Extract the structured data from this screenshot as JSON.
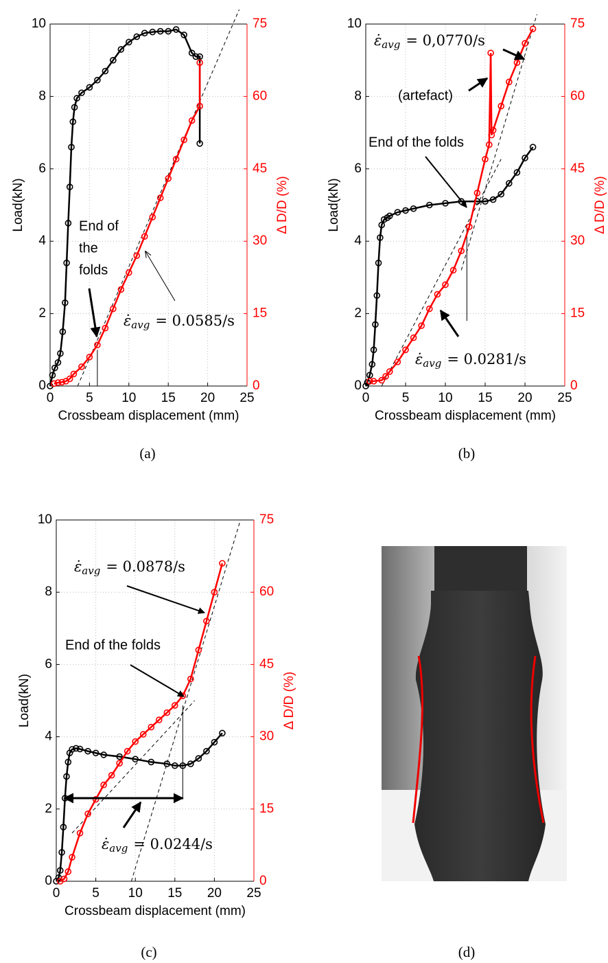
{
  "chart_data": [
    {
      "type": "line",
      "caption": "(a)",
      "x_label": "Crossbeam displacement (mm)",
      "y_label": "Load(kN)",
      "y2_label": "Δ D/D (%)",
      "xlim": [
        0,
        25
      ],
      "xticks": [
        0,
        5,
        10,
        15,
        20,
        25
      ],
      "ylim": [
        0,
        10
      ],
      "yticks": [
        0,
        2,
        4,
        6,
        8,
        10
      ],
      "y2lim": [
        0,
        75
      ],
      "y2ticks": [
        0,
        15,
        30,
        45,
        60,
        75
      ],
      "grid": true,
      "series": [
        {
          "color": "#000000",
          "x": [
            0,
            0.3,
            0.6,
            1,
            1.3,
            1.6,
            1.9,
            2.1,
            2.3,
            2.5,
            2.7,
            2.9,
            3.1,
            3.4,
            4,
            5,
            6,
            7,
            8,
            9,
            10,
            11,
            12,
            13,
            14,
            15,
            16,
            17,
            18,
            18.5,
            19,
            19
          ],
          "values": [
            0,
            0.3,
            0.5,
            0.65,
            0.9,
            1.5,
            2.3,
            3.4,
            4.5,
            5.5,
            6.6,
            7.3,
            7.7,
            7.95,
            8.1,
            8.25,
            8.45,
            8.7,
            9.0,
            9.3,
            9.5,
            9.65,
            9.75,
            9.78,
            9.8,
            9.8,
            9.85,
            9.7,
            9.2,
            9.1,
            9.1,
            6.7
          ]
        },
        {
          "color": "#ff0000",
          "axis": "y2",
          "x": [
            0.5,
            1,
            1.5,
            2,
            2.5,
            3,
            4,
            5,
            6,
            7,
            8,
            9,
            10,
            11,
            12,
            13,
            14,
            15,
            16,
            17,
            18,
            19,
            19
          ],
          "values": [
            0.5,
            0.7,
            0.8,
            1,
            1.5,
            2.5,
            4,
            6,
            8.5,
            12,
            16,
            20,
            23.5,
            27,
            31,
            35,
            39,
            43,
            47,
            51,
            55,
            58,
            67
          ]
        }
      ],
      "reference_lines": [
        {
          "axis": "y2",
          "dash": true,
          "x": [
            3.5,
            24
          ],
          "values": [
            0,
            78
          ]
        },
        {
          "axis": "y2",
          "dash": false,
          "x": [
            6,
            6
          ],
          "values": [
            0,
            7.5
          ]
        }
      ],
      "annotations": [
        {
          "lines": [
            "End of",
            "the",
            "folds"
          ]
        },
        {
          "symbol": "ε̇",
          "subscript": "avg",
          "text": "= 0.0585/s"
        }
      ]
    },
    {
      "type": "line",
      "caption": "(b)",
      "x_label": "Crossbeam displacement (mm)",
      "y_label": "Load(kN)",
      "y2_label": "Δ D/D (%)",
      "xlim": [
        0,
        25
      ],
      "xticks": [
        0,
        5,
        10,
        15,
        20,
        25
      ],
      "ylim": [
        0,
        10
      ],
      "yticks": [
        0,
        2,
        4,
        6,
        8,
        10
      ],
      "y2lim": [
        0,
        75
      ],
      "y2ticks": [
        0,
        15,
        30,
        45,
        60,
        75
      ],
      "grid": true,
      "series": [
        {
          "color": "#000000",
          "x": [
            0,
            0.2,
            0.5,
            0.8,
            1,
            1.2,
            1.4,
            1.6,
            1.8,
            2,
            2.3,
            2.7,
            3,
            4,
            5,
            6,
            8,
            10,
            12,
            14,
            15,
            16,
            17,
            18,
            19,
            20,
            21
          ],
          "values": [
            0,
            0.1,
            0.3,
            0.6,
            1,
            1.7,
            2.5,
            3.4,
            4.1,
            4.45,
            4.6,
            4.65,
            4.7,
            4.8,
            4.85,
            4.9,
            5.0,
            5.05,
            5.1,
            5.1,
            5.1,
            5.15,
            5.3,
            5.6,
            5.9,
            6.3,
            6.6
          ]
        },
        {
          "color": "#ff0000",
          "axis": "y2",
          "x": [
            0.5,
            1,
            2,
            2.5,
            3,
            4,
            5,
            6,
            7,
            8,
            9,
            10,
            11,
            12,
            13,
            14,
            15,
            15.5,
            15.7,
            15.8,
            16,
            17,
            18,
            19,
            20,
            21
          ],
          "values": [
            1,
            1,
            1.2,
            2,
            3,
            5,
            7.5,
            10,
            12.5,
            16,
            19,
            21,
            24,
            28,
            33,
            40,
            47,
            50,
            69,
            52,
            53,
            58,
            63,
            67,
            71,
            74
          ]
        }
      ],
      "reference_lines": [
        {
          "axis": "y2",
          "dash": true,
          "x": [
            2,
            17
          ],
          "values": [
            0,
            47
          ]
        },
        {
          "axis": "y2",
          "dash": true,
          "x": [
            12,
            21.5
          ],
          "values": [
            24,
            77
          ]
        },
        {
          "axis": "y2",
          "dash": false,
          "x": [
            12.7,
            12.7
          ],
          "values": [
            13.5,
            33
          ]
        }
      ],
      "annotations": [
        {
          "symbol": "ε̇",
          "subscript": "avg",
          "text": "= 0,0770/s"
        },
        {
          "lines": [
            "(artefact)"
          ]
        },
        {
          "lines": [
            "End of the folds"
          ]
        },
        {
          "symbol": "ε̇",
          "subscript": "avg",
          "text": "= 0.0281/s"
        }
      ]
    },
    {
      "type": "line",
      "caption": "(c)",
      "x_label": "Crossbeam displacement (mm)",
      "y_label": "Load(kN)",
      "y2_label": "Δ D/D (%)",
      "xlim": [
        0,
        25
      ],
      "xticks": [
        0,
        5,
        10,
        15,
        20,
        25
      ],
      "ylim": [
        0,
        10
      ],
      "yticks": [
        0,
        2,
        4,
        6,
        8,
        10
      ],
      "y2lim": [
        0,
        75
      ],
      "y2ticks": [
        0,
        15,
        30,
        45,
        60,
        75
      ],
      "grid": true,
      "series": [
        {
          "color": "#000000",
          "x": [
            0,
            0.3,
            0.5,
            0.7,
            0.9,
            1.1,
            1.3,
            1.5,
            1.7,
            2,
            2.5,
            3,
            4,
            5,
            6,
            8,
            10,
            12,
            14,
            15,
            16,
            17,
            18,
            19,
            20,
            21
          ],
          "values": [
            0,
            0.1,
            0.3,
            0.8,
            1.5,
            2.3,
            2.9,
            3.3,
            3.55,
            3.65,
            3.68,
            3.66,
            3.6,
            3.55,
            3.5,
            3.45,
            3.38,
            3.3,
            3.25,
            3.2,
            3.2,
            3.25,
            3.4,
            3.6,
            3.85,
            4.1
          ]
        },
        {
          "color": "#ff0000",
          "axis": "y2",
          "x": [
            0.5,
            1,
            1.5,
            2,
            3,
            4,
            5,
            6,
            7,
            8,
            9,
            10,
            11,
            12,
            13,
            14,
            15,
            16,
            17,
            18,
            19,
            20,
            21
          ],
          "values": [
            0,
            0.5,
            2,
            5,
            10,
            14,
            17,
            20,
            22,
            24.5,
            27,
            29,
            30.5,
            32,
            33.5,
            35,
            36.5,
            38.5,
            42,
            48,
            54,
            60,
            66
          ]
        }
      ],
      "reference_lines": [
        {
          "axis": "y2",
          "dash": true,
          "x": [
            9.5,
            23.3
          ],
          "values": [
            0,
            75
          ]
        },
        {
          "axis": "y2",
          "dash": true,
          "x": [
            2,
            17.5
          ],
          "values": [
            10,
            37.5
          ]
        },
        {
          "axis": "y2",
          "dash": false,
          "x": [
            16,
            16
          ],
          "values": [
            17,
            36.5
          ]
        }
      ],
      "annotations": [
        {
          "symbol": "ε̇",
          "subscript": "avg",
          "text": "= 0.0878/s"
        },
        {
          "lines": [
            "End of the folds"
          ]
        },
        {
          "symbol": "ε̇",
          "subscript": "avg",
          "text": "= 0.0244/s"
        }
      ]
    }
  ],
  "photo": {
    "caption": "(d)"
  }
}
